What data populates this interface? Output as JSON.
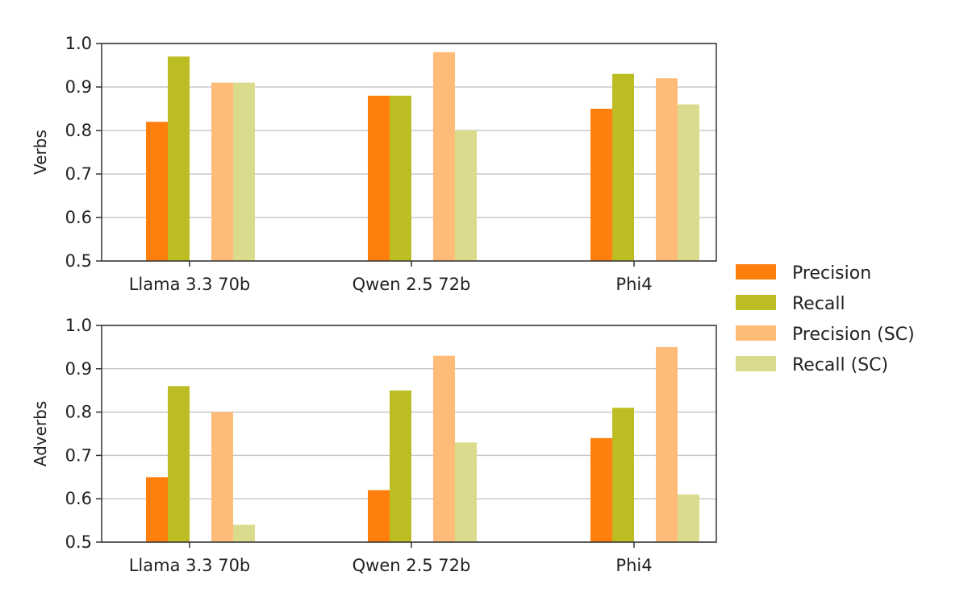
{
  "chart_data": {
    "type": "bar",
    "categories": [
      "Llama 3.3 70b",
      "Qwen 2.5 72b",
      "Phi4"
    ],
    "series_styles": [
      {
        "name": "Precision",
        "color": "#ff7f0e"
      },
      {
        "name": "Recall",
        "color": "#bcbd22"
      },
      {
        "name": "Precision (SC)",
        "color": "#ffbb78"
      },
      {
        "name": "Recall (SC)",
        "color": "#dbdb8d"
      }
    ],
    "legend_position": "right-center",
    "grid": "horizontal",
    "panels": [
      {
        "ylabel": "Verbs",
        "ylim": [
          0.5,
          1.0
        ],
        "yticks": [
          "0.5",
          "0.6",
          "0.7",
          "0.8",
          "0.9",
          "1.0"
        ],
        "series": [
          {
            "name": "Precision",
            "values": [
              0.82,
              0.88,
              0.85
            ]
          },
          {
            "name": "Recall",
            "values": [
              0.97,
              0.88,
              0.93
            ]
          },
          {
            "name": "Precision (SC)",
            "values": [
              0.91,
              0.98,
              0.92
            ]
          },
          {
            "name": "Recall (SC)",
            "values": [
              0.91,
              0.8,
              0.86
            ]
          }
        ]
      },
      {
        "ylabel": "Adverbs",
        "ylim": [
          0.5,
          1.0
        ],
        "yticks": [
          "0.5",
          "0.6",
          "0.7",
          "0.8",
          "0.9",
          "1.0"
        ],
        "series": [
          {
            "name": "Precision",
            "values": [
              0.65,
              0.62,
              0.74
            ]
          },
          {
            "name": "Recall",
            "values": [
              0.86,
              0.85,
              0.81
            ]
          },
          {
            "name": "Precision (SC)",
            "values": [
              0.8,
              0.93,
              0.95
            ]
          },
          {
            "name": "Recall (SC)",
            "values": [
              0.54,
              0.73,
              0.61
            ]
          }
        ]
      }
    ]
  }
}
